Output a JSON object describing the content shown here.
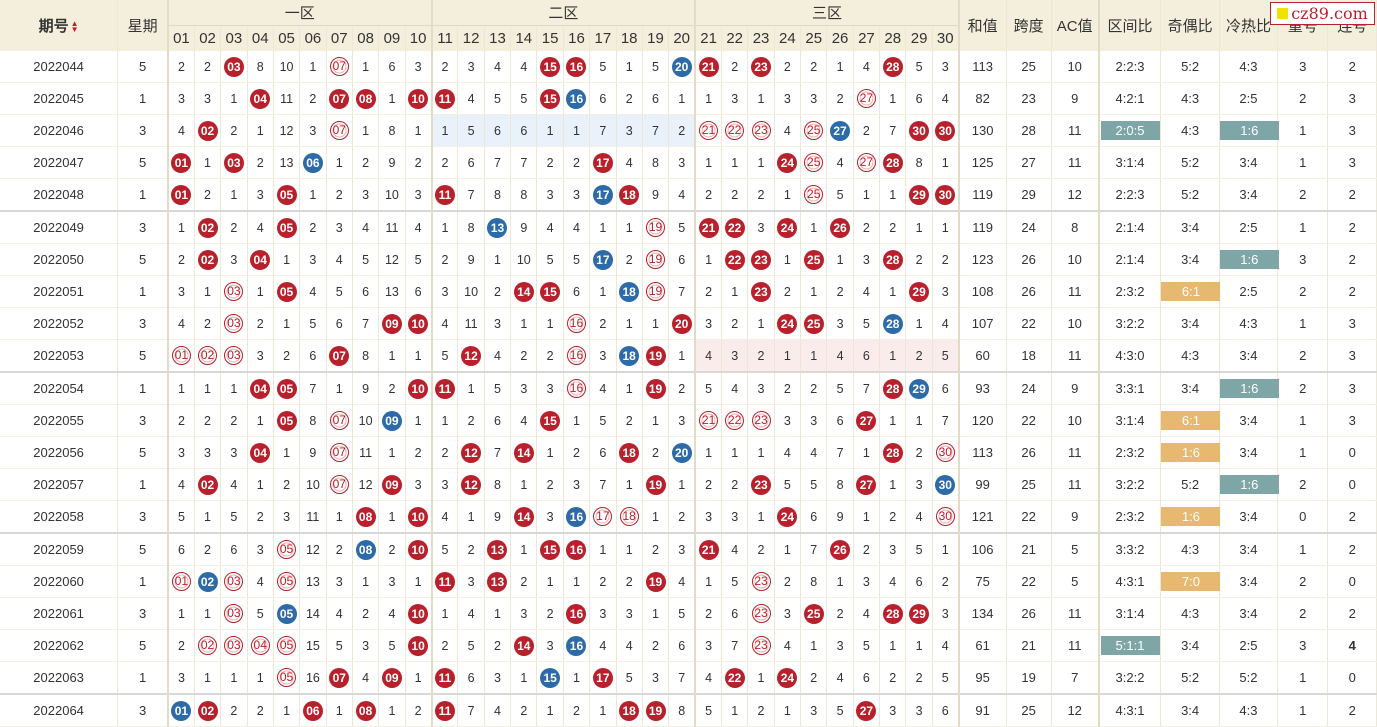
{
  "header": {
    "period": "期号",
    "weekday": "星期",
    "zone1": "一区",
    "zone2": "二区",
    "zone3": "三区",
    "sum": "和值",
    "span": "跨度",
    "ac": "AC值",
    "zone_ratio": "区间比",
    "odd_even": "奇偶比",
    "hot_cold": "冷热比",
    "repeat": "重号",
    "consecutive": "连号",
    "numbers": [
      "01",
      "02",
      "03",
      "04",
      "05",
      "06",
      "07",
      "08",
      "09",
      "10",
      "11",
      "12",
      "13",
      "14",
      "15",
      "16",
      "17",
      "18",
      "19",
      "20",
      "21",
      "22",
      "23",
      "24",
      "25",
      "26",
      "27",
      "28",
      "29",
      "30"
    ]
  },
  "logo": {
    "text": "cz89.com"
  },
  "colors": {
    "red_ball": "#b8202b",
    "blue_ball": "#2d6aa8",
    "teal_box": "#7ea6a6",
    "orange_box": "#e6b870",
    "header_bg": "#f4efdc"
  },
  "rows": [
    {
      "period": "2022044",
      "weekday": "5",
      "cells": [
        "2",
        "2",
        "R03",
        "8",
        "10",
        "1",
        "C07",
        "1",
        "6",
        "3",
        "2",
        "3",
        "4",
        "4",
        "R15",
        "R16",
        "5",
        "1",
        "5",
        "B20",
        "R21",
        "2",
        "R23",
        "2",
        "2",
        "1",
        "4",
        "R28",
        "5",
        "3"
      ],
      "sum": "113",
      "span": "25",
      "ac": "10",
      "zone_ratio": "2:2:3",
      "odd_even": "5:2",
      "hot_cold": "4:3",
      "repeat": "3",
      "consecutive": "2"
    },
    {
      "period": "2022045",
      "weekday": "1",
      "cells": [
        "3",
        "3",
        "1",
        "R04",
        "11",
        "2",
        "R07",
        "R08",
        "1",
        "R10",
        "R11",
        "4",
        "5",
        "5",
        "R15",
        "B16",
        "6",
        "2",
        "6",
        "1",
        "1",
        "3",
        "1",
        "3",
        "3",
        "2",
        "C27",
        "1",
        "6",
        "4"
      ],
      "sum": "82",
      "span": "23",
      "ac": "9",
      "zone_ratio": "4:2:1",
      "odd_even": "4:3",
      "hot_cold": "2:5",
      "repeat": "2",
      "consecutive": "3"
    },
    {
      "period": "2022046",
      "weekday": "3",
      "cells": [
        "4",
        "R02",
        "2",
        "1",
        "12",
        "3",
        "C07",
        "1",
        "8",
        "1",
        "1",
        "5",
        "6",
        "6",
        "1",
        "1",
        "7",
        "3",
        "7",
        "2",
        "C21",
        "C22",
        "C23",
        "4",
        "C25",
        "B27x",
        "2",
        "7",
        "R30",
        "R30"
      ],
      "sum": "130",
      "span": "28",
      "ac": "11",
      "zone_ratio": "2:0:5",
      "zone_ratio_box": "teal",
      "odd_even": "4:3",
      "hot_cold": "1:6",
      "hot_cold_box": "teal",
      "repeat": "1",
      "consecutive": "3",
      "hl": "z2"
    },
    {
      "period": "2022047",
      "weekday": "5",
      "cells": [
        "R01",
        "1",
        "R03",
        "2",
        "13",
        "B06",
        "1",
        "2",
        "9",
        "2",
        "2",
        "6",
        "7",
        "7",
        "2",
        "2",
        "R17",
        "4",
        "8",
        "3",
        "1",
        "1",
        "1",
        "R24",
        "C25",
        "4",
        "C27",
        "R28",
        "8",
        "1"
      ],
      "sum": "125",
      "span": "27",
      "ac": "11",
      "zone_ratio": "3:1:4",
      "odd_even": "5:2",
      "hot_cold": "3:4",
      "repeat": "1",
      "consecutive": "3"
    },
    {
      "period": "2022048",
      "weekday": "1",
      "cells": [
        "R01",
        "2",
        "1",
        "3",
        "R05",
        "1",
        "2",
        "3",
        "10",
        "3",
        "R11",
        "7",
        "8",
        "8",
        "3",
        "3",
        "B17",
        "R18",
        "9",
        "4",
        "2",
        "2",
        "2",
        "1",
        "C25",
        "5",
        "1",
        "1",
        "R29",
        "R30"
      ],
      "sum": "119",
      "span": "29",
      "ac": "12",
      "zone_ratio": "2:2:3",
      "odd_even": "5:2",
      "hot_cold": "3:4",
      "repeat": "2",
      "consecutive": "2"
    },
    {
      "period": "2022049",
      "weekday": "3",
      "cells": [
        "1",
        "R02",
        "2",
        "4",
        "R05",
        "2",
        "3",
        "4",
        "11",
        "4",
        "1",
        "8",
        "B13",
        "9",
        "4",
        "4",
        "1",
        "1",
        "C19",
        "5",
        "R21",
        "R22",
        "3",
        "R24",
        "1",
        "R26",
        "2",
        "2",
        "1",
        "1"
      ],
      "sum": "119",
      "span": "24",
      "ac": "8",
      "zone_ratio": "2:1:4",
      "odd_even": "3:4",
      "hot_cold": "2:5",
      "repeat": "1",
      "consecutive": "2",
      "group_start": true
    },
    {
      "period": "2022050",
      "weekday": "5",
      "cells": [
        "2",
        "R02",
        "3",
        "R04",
        "1",
        "3",
        "4",
        "5",
        "12",
        "5",
        "2",
        "9",
        "1",
        "10",
        "5",
        "5",
        "B17",
        "2",
        "C19",
        "6",
        "1",
        "R22",
        "R23",
        "1",
        "R25",
        "1",
        "3",
        "R28",
        "2",
        "2"
      ],
      "sum": "123",
      "span": "26",
      "ac": "10",
      "zone_ratio": "2:1:4",
      "odd_even": "3:4",
      "hot_cold": "1:6",
      "hot_cold_box": "teal",
      "repeat": "3",
      "consecutive": "2"
    },
    {
      "period": "2022051",
      "weekday": "1",
      "cells": [
        "3",
        "1",
        "C03",
        "1",
        "R05",
        "4",
        "5",
        "6",
        "13",
        "6",
        "3",
        "10",
        "2",
        "R14",
        "R15",
        "6",
        "1",
        "B18",
        "C19",
        "7",
        "2",
        "1",
        "R23",
        "2",
        "1",
        "2",
        "4",
        "1",
        "R29",
        "3"
      ],
      "sum": "108",
      "span": "26",
      "ac": "11",
      "zone_ratio": "2:3:2",
      "odd_even": "6:1",
      "odd_even_box": "orange",
      "hot_cold": "2:5",
      "repeat": "2",
      "consecutive": "2"
    },
    {
      "period": "2022052",
      "weekday": "3",
      "cells": [
        "4",
        "2",
        "C03",
        "2",
        "1",
        "5",
        "6",
        "7",
        "R09",
        "R10",
        "4",
        "11",
        "3",
        "1",
        "1",
        "C16",
        "2",
        "1",
        "1",
        "R20",
        "3",
        "2",
        "1",
        "R24",
        "R25",
        "3",
        "5",
        "B28",
        "1",
        "4"
      ],
      "sum": "107",
      "span": "22",
      "ac": "10",
      "zone_ratio": "3:2:2",
      "odd_even": "3:4",
      "hot_cold": "4:3",
      "repeat": "1",
      "consecutive": "3"
    },
    {
      "period": "2022053",
      "weekday": "5",
      "cells": [
        "C01",
        "C02",
        "C03",
        "3",
        "2",
        "6",
        "R07",
        "8",
        "1",
        "1",
        "5",
        "R12",
        "4",
        "2",
        "2",
        "C16",
        "3",
        "B18",
        "R19",
        "1",
        "4",
        "3",
        "2",
        "1",
        "1",
        "4",
        "6",
        "1",
        "2",
        "5"
      ],
      "sum": "60",
      "span": "18",
      "ac": "11",
      "zone_ratio": "4:3:0",
      "odd_even": "4:3",
      "hot_cold": "3:4",
      "repeat": "2",
      "consecutive": "3",
      "hl": "z3"
    },
    {
      "period": "2022054",
      "weekday": "1",
      "cells": [
        "1",
        "1",
        "1",
        "R04",
        "R05",
        "7",
        "1",
        "9",
        "2",
        "R10",
        "R11",
        "1",
        "5",
        "3",
        "3",
        "C16",
        "4",
        "1",
        "R19",
        "2",
        "5",
        "4",
        "3",
        "2",
        "2",
        "5",
        "7",
        "R28",
        "B29",
        "6"
      ],
      "sum": "93",
      "span": "24",
      "ac": "9",
      "zone_ratio": "3:3:1",
      "odd_even": "3:4",
      "hot_cold": "1:6",
      "hot_cold_box": "teal",
      "repeat": "2",
      "consecutive": "3",
      "group_start": true
    },
    {
      "period": "2022055",
      "weekday": "3",
      "cells": [
        "2",
        "2",
        "2",
        "1",
        "R05",
        "8",
        "C07",
        "10",
        "B09",
        "1",
        "1",
        "2",
        "6",
        "4",
        "R15",
        "1",
        "5",
        "2",
        "1",
        "3",
        "C21",
        "C22",
        "C23",
        "3",
        "3",
        "6",
        "R27",
        "1",
        "1",
        "7"
      ],
      "sum": "120",
      "span": "22",
      "ac": "10",
      "zone_ratio": "3:1:4",
      "odd_even": "6:1",
      "odd_even_box": "orange",
      "hot_cold": "3:4",
      "repeat": "1",
      "consecutive": "3"
    },
    {
      "period": "2022056",
      "weekday": "5",
      "cells": [
        "3",
        "3",
        "3",
        "R04",
        "1",
        "9",
        "C07",
        "11",
        "1",
        "2",
        "2",
        "R12",
        "7",
        "R14",
        "1",
        "2",
        "6",
        "R18",
        "2",
        "B20",
        "1",
        "1",
        "1",
        "4",
        "4",
        "7",
        "1",
        "R28",
        "2",
        "C30"
      ],
      "sum": "113",
      "span": "26",
      "ac": "11",
      "zone_ratio": "2:3:2",
      "odd_even": "1:6",
      "odd_even_box": "orange",
      "hot_cold": "3:4",
      "repeat": "1",
      "consecutive": "0"
    },
    {
      "period": "2022057",
      "weekday": "1",
      "cells": [
        "4",
        "R02",
        "4",
        "1",
        "2",
        "10",
        "C07",
        "12",
        "R09",
        "3",
        "3",
        "R12",
        "8",
        "1",
        "2",
        "3",
        "7",
        "1",
        "R19",
        "1",
        "2",
        "2",
        "R23",
        "5",
        "5",
        "8",
        "R27",
        "1",
        "3",
        "B30"
      ],
      "sum": "99",
      "span": "25",
      "ac": "11",
      "zone_ratio": "3:2:2",
      "odd_even": "5:2",
      "hot_cold": "1:6",
      "hot_cold_box": "teal",
      "repeat": "2",
      "consecutive": "0"
    },
    {
      "period": "2022058",
      "weekday": "3",
      "cells": [
        "5",
        "1",
        "5",
        "2",
        "3",
        "11",
        "1",
        "R08",
        "1",
        "R10",
        "4",
        "1",
        "9",
        "R14",
        "3",
        "B16",
        "C17",
        "C18",
        "1",
        "2",
        "3",
        "3",
        "1",
        "R24",
        "6",
        "9",
        "1",
        "2",
        "4",
        "C30"
      ],
      "sum": "121",
      "span": "22",
      "ac": "9",
      "zone_ratio": "2:3:2",
      "odd_even": "1:6",
      "odd_even_box": "orange",
      "hot_cold": "3:4",
      "repeat": "0",
      "consecutive": "2"
    },
    {
      "period": "2022059",
      "weekday": "5",
      "cells": [
        "6",
        "2",
        "6",
        "3",
        "C05",
        "12",
        "2",
        "B08",
        "2",
        "R10",
        "5",
        "2",
        "R13",
        "1",
        "R15",
        "R16",
        "1",
        "1",
        "2",
        "3",
        "R21",
        "4",
        "2",
        "1",
        "7",
        "R26",
        "2",
        "3",
        "5",
        "1"
      ],
      "sum": "106",
      "span": "21",
      "ac": "5",
      "zone_ratio": "3:3:2",
      "odd_even": "4:3",
      "hot_cold": "3:4",
      "repeat": "1",
      "consecutive": "2",
      "group_start": true
    },
    {
      "period": "2022060",
      "weekday": "1",
      "cells": [
        "C01",
        "B02",
        "C03",
        "4",
        "C05",
        "13",
        "3",
        "1",
        "3",
        "1",
        "R11",
        "3",
        "R13",
        "2",
        "1",
        "1",
        "2",
        "2",
        "R19",
        "4",
        "1",
        "5",
        "C23",
        "2",
        "8",
        "1",
        "3",
        "4",
        "6",
        "2"
      ],
      "sum": "75",
      "span": "22",
      "ac": "5",
      "zone_ratio": "4:3:1",
      "odd_even": "7:0",
      "odd_even_box": "orange",
      "hot_cold": "3:4",
      "repeat": "2",
      "consecutive": "0"
    },
    {
      "period": "2022061",
      "weekday": "3",
      "cells": [
        "1",
        "1",
        "C03",
        "5",
        "B05",
        "14",
        "4",
        "2",
        "4",
        "R10",
        "1",
        "4",
        "1",
        "3",
        "2",
        "R16",
        "3",
        "3",
        "1",
        "5",
        "2",
        "6",
        "C23",
        "3",
        "R25",
        "2",
        "4",
        "R28",
        "R29",
        "3"
      ],
      "sum": "134",
      "span": "26",
      "ac": "11",
      "zone_ratio": "3:1:4",
      "odd_even": "4:3",
      "hot_cold": "3:4",
      "repeat": "2",
      "consecutive": "2"
    },
    {
      "period": "2022062",
      "weekday": "5",
      "cells": [
        "2",
        "C02",
        "C03",
        "C04",
        "C05",
        "15",
        "5",
        "3",
        "5",
        "R10",
        "2",
        "5",
        "2",
        "R14",
        "3",
        "B16",
        "4",
        "4",
        "2",
        "6",
        "3",
        "7",
        "C23",
        "4",
        "1",
        "3",
        "5",
        "1",
        "1",
        "4"
      ],
      "sum": "61",
      "span": "21",
      "ac": "11",
      "zone_ratio": "5:1:1",
      "zone_ratio_box": "teal",
      "odd_even": "3:4",
      "hot_cold": "2:5",
      "repeat": "3",
      "consecutive": "4",
      "consecutive_style": "teal"
    },
    {
      "period": "2022063",
      "weekday": "1",
      "cells": [
        "3",
        "1",
        "1",
        "1",
        "C05",
        "16",
        "R07",
        "4",
        "R09",
        "1",
        "R11",
        "6",
        "3",
        "1",
        "B15",
        "1",
        "R17",
        "5",
        "3",
        "7",
        "4",
        "R22",
        "1",
        "R24",
        "2",
        "4",
        "6",
        "2",
        "2",
        "5"
      ],
      "sum": "95",
      "span": "19",
      "ac": "7",
      "zone_ratio": "3:2:2",
      "odd_even": "5:2",
      "hot_cold": "5:2",
      "repeat": "1",
      "consecutive": "0"
    },
    {
      "period": "2022064",
      "weekday": "3",
      "cells": [
        "B01",
        "R02",
        "2",
        "2",
        "1",
        "R06",
        "1",
        "R08",
        "1",
        "2",
        "R11",
        "7",
        "4",
        "2",
        "1",
        "2",
        "1",
        "R18",
        "R19",
        "8",
        "5",
        "1",
        "2",
        "1",
        "3",
        "5",
        "R27",
        "3",
        "3",
        "6"
      ],
      "sum": "91",
      "span": "25",
      "ac": "12",
      "zone_ratio": "4:3:1",
      "odd_even": "3:4",
      "hot_cold": "4:3",
      "repeat": "1",
      "consecutive": "2",
      "group_start": true
    }
  ]
}
